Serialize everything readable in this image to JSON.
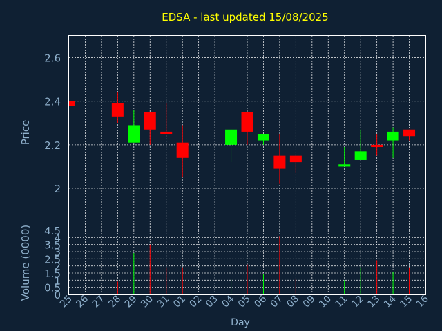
{
  "chart_data": {
    "type": "candlestick",
    "title": "EDSA - last updated 15/08/2025",
    "xlabel": "Day",
    "price_panel": {
      "ylabel": "Price",
      "ylim": [
        1.81,
        2.7
      ],
      "yticks": [
        "2",
        "2.2",
        "2.4",
        "2.6"
      ],
      "ytick_values": [
        2.0,
        2.2,
        2.4,
        2.6
      ],
      "grid": true
    },
    "volume_panel": {
      "ylabel": "Volume (0000)",
      "ylim": [
        0,
        4.5
      ],
      "yticks": [
        "0",
        "0.5",
        "1",
        "1.5",
        "2",
        "2.5",
        "3",
        "3.5",
        "4",
        "4.5"
      ],
      "ytick_values": [
        0,
        0.5,
        1,
        1.5,
        2,
        2.5,
        3,
        3.5,
        4,
        4.5
      ],
      "grid": true
    },
    "x_labels": [
      "25",
      "26",
      "27",
      "28",
      "29",
      "30",
      "31",
      "01",
      "02",
      "03",
      "04",
      "05",
      "06",
      "07",
      "08",
      "09",
      "10",
      "11",
      "12",
      "13",
      "14",
      "15",
      "16"
    ],
    "candles": [
      {
        "day": "25",
        "open": 2.4,
        "close": 2.38,
        "high": 2.4,
        "low": 2.38,
        "volume": 0
      },
      {
        "day": "28",
        "open": 2.39,
        "close": 2.33,
        "high": 2.44,
        "low": 2.3,
        "volume": 0.9
      },
      {
        "day": "29",
        "open": 2.21,
        "close": 2.29,
        "high": 2.36,
        "low": 2.21,
        "volume": 2.9
      },
      {
        "day": "30",
        "open": 2.35,
        "close": 2.27,
        "high": 2.35,
        "low": 2.2,
        "volume": 3.5
      },
      {
        "day": "31",
        "open": 2.26,
        "close": 2.25,
        "high": 2.39,
        "low": 2.25,
        "volume": 1.9
      },
      {
        "day": "01",
        "open": 2.21,
        "close": 2.14,
        "high": 2.29,
        "low": 2.05,
        "volume": 1.9
      },
      {
        "day": "04",
        "open": 2.2,
        "close": 2.27,
        "high": 2.27,
        "low": 2.12,
        "volume": 1.1
      },
      {
        "day": "05",
        "open": 2.35,
        "close": 2.26,
        "high": 2.35,
        "low": 2.2,
        "volume": 2.1
      },
      {
        "day": "06",
        "open": 2.22,
        "close": 2.25,
        "high": 2.25,
        "low": 2.2,
        "volume": 1.4
      },
      {
        "day": "07",
        "open": 2.15,
        "close": 2.09,
        "high": 2.25,
        "low": 2.02,
        "volume": 4.1
      },
      {
        "day": "08",
        "open": 2.15,
        "close": 2.12,
        "high": 2.15,
        "low": 2.07,
        "volume": 1.1
      },
      {
        "day": "11",
        "open": 2.1,
        "close": 2.11,
        "high": 2.19,
        "low": 2.1,
        "volume": 1.0
      },
      {
        "day": "12",
        "open": 2.13,
        "close": 2.17,
        "high": 2.27,
        "low": 2.13,
        "volume": 1.9
      },
      {
        "day": "13",
        "open": 2.2,
        "close": 2.19,
        "high": 2.25,
        "low": 2.15,
        "volume": 2.4
      },
      {
        "day": "14",
        "open": 2.22,
        "close": 2.26,
        "high": 2.28,
        "low": 2.14,
        "volume": 1.6
      },
      {
        "day": "15",
        "open": 2.27,
        "close": 2.24,
        "high": 2.27,
        "low": 2.22,
        "volume": 1.9
      }
    ],
    "colors": {
      "background": "#0f2033",
      "up": "#00ff00",
      "down": "#ff0000",
      "title": "#ffff00",
      "text": "#8fb0cc",
      "grid": "#ffffff"
    }
  }
}
